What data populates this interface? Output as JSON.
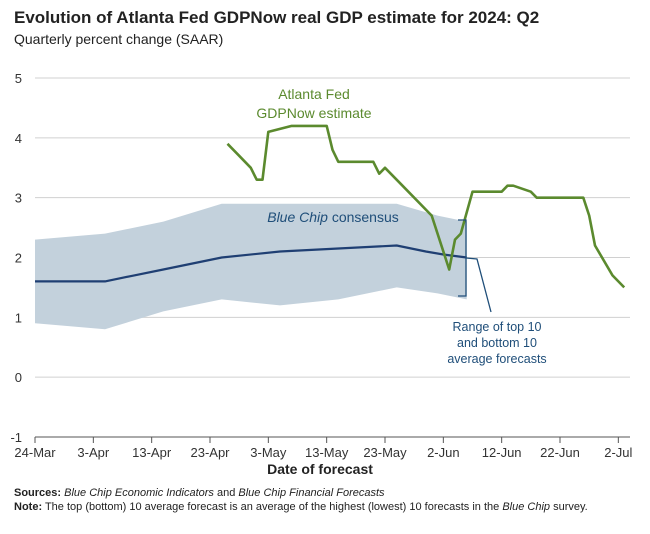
{
  "title": "Evolution of Atlanta Fed GDPNow real GDP estimate for 2024: Q2",
  "subtitle": "Quarterly percent change (SAAR)",
  "chart_data": {
    "type": "line",
    "xlabel": "Date of forecast",
    "ylabel": "",
    "x_ticks": [
      "24-Mar",
      "3-Apr",
      "13-Apr",
      "23-Apr",
      "3-May",
      "13-May",
      "23-May",
      "2-Jun",
      "12-Jun",
      "22-Jun",
      "2-Jul"
    ],
    "xlim": [
      "2024-03-24",
      "2024-07-04"
    ],
    "y_ticks": [
      "5",
      "4",
      "3",
      "2",
      "1",
      "0",
      "-1"
    ],
    "ylim": [
      -1,
      5
    ],
    "grid": "horizontal",
    "colors": {
      "gdpnow": "#5b8a2e",
      "bluechip": "#1f3f73",
      "range": "#c3d1dc",
      "navy_text": "#1f4e79"
    },
    "series": [
      {
        "name": "Atlanta Fed GDPNow estimate",
        "points": [
          [
            "2024-04-26",
            3.9
          ],
          [
            "2024-04-28",
            3.7
          ],
          [
            "2024-04-30",
            3.5
          ],
          [
            "2024-05-01",
            3.3
          ],
          [
            "2024-05-02",
            3.3
          ],
          [
            "2024-05-03",
            4.1
          ],
          [
            "2024-05-05",
            4.15
          ],
          [
            "2024-05-07",
            4.2
          ],
          [
            "2024-05-13",
            4.2
          ],
          [
            "2024-05-14",
            3.8
          ],
          [
            "2024-05-15",
            3.6
          ],
          [
            "2024-05-21",
            3.6
          ],
          [
            "2024-05-22",
            3.4
          ],
          [
            "2024-05-23",
            3.5
          ],
          [
            "2024-05-26",
            3.2
          ],
          [
            "2024-05-31",
            2.7
          ],
          [
            "2024-06-03",
            1.8
          ],
          [
            "2024-06-04",
            2.3
          ],
          [
            "2024-06-05",
            2.4
          ],
          [
            "2024-06-07",
            3.1
          ],
          [
            "2024-06-12",
            3.1
          ],
          [
            "2024-06-13",
            3.2
          ],
          [
            "2024-06-14",
            3.2
          ],
          [
            "2024-06-17",
            3.1
          ],
          [
            "2024-06-18",
            3.0
          ],
          [
            "2024-06-26",
            3.0
          ],
          [
            "2024-06-27",
            2.7
          ],
          [
            "2024-06-28",
            2.2
          ],
          [
            "2024-07-01",
            1.7
          ],
          [
            "2024-07-03",
            1.5
          ]
        ]
      },
      {
        "name": "Blue Chip consensus",
        "points": [
          [
            "2024-03-24",
            1.6
          ],
          [
            "2024-04-05",
            1.6
          ],
          [
            "2024-04-10",
            1.7
          ],
          [
            "2024-04-15",
            1.8
          ],
          [
            "2024-04-20",
            1.9
          ],
          [
            "2024-04-25",
            2.0
          ],
          [
            "2024-05-05",
            2.1
          ],
          [
            "2024-05-15",
            2.15
          ],
          [
            "2024-05-25",
            2.2
          ],
          [
            "2024-05-30",
            2.1
          ],
          [
            "2024-06-02",
            2.05
          ],
          [
            "2024-06-06",
            2.0
          ]
        ]
      }
    ],
    "range_band": {
      "name": "Range of top 10 and bottom 10 average forecasts",
      "upper": [
        [
          "2024-03-24",
          2.3
        ],
        [
          "2024-04-05",
          2.4
        ],
        [
          "2024-04-15",
          2.6
        ],
        [
          "2024-04-25",
          2.9
        ],
        [
          "2024-05-05",
          2.9
        ],
        [
          "2024-05-15",
          2.9
        ],
        [
          "2024-05-25",
          2.9
        ],
        [
          "2024-06-01",
          2.7
        ],
        [
          "2024-06-06",
          2.6
        ]
      ],
      "lower": [
        [
          "2024-03-24",
          0.9
        ],
        [
          "2024-04-05",
          0.8
        ],
        [
          "2024-04-15",
          1.1
        ],
        [
          "2024-04-25",
          1.3
        ],
        [
          "2024-05-05",
          1.2
        ],
        [
          "2024-05-15",
          1.3
        ],
        [
          "2024-05-25",
          1.5
        ],
        [
          "2024-06-01",
          1.4
        ],
        [
          "2024-06-06",
          1.3
        ]
      ]
    },
    "annotations": {
      "gdpnow_line1": "Atlanta Fed",
      "gdpnow_line2": "GDPNow estimate",
      "bluechip_italic": "Blue Chip",
      "bluechip_rest": " consensus",
      "range_line1": "Range of top 10",
      "range_line2": "and bottom 10",
      "range_line3": "average forecasts"
    }
  },
  "footnotes": {
    "sources_label": "Sources:",
    "sources_1": "Blue Chip Economic Indicators",
    "sources_and": " and ",
    "sources_2": "Blue Chip Financial Forecasts",
    "note_label": "Note:",
    "note_1": " The top (bottom) 10 average forecast is an average of the highest (lowest) 10 forecasts in the ",
    "note_2": "Blue Chip",
    "note_3": " survey."
  }
}
